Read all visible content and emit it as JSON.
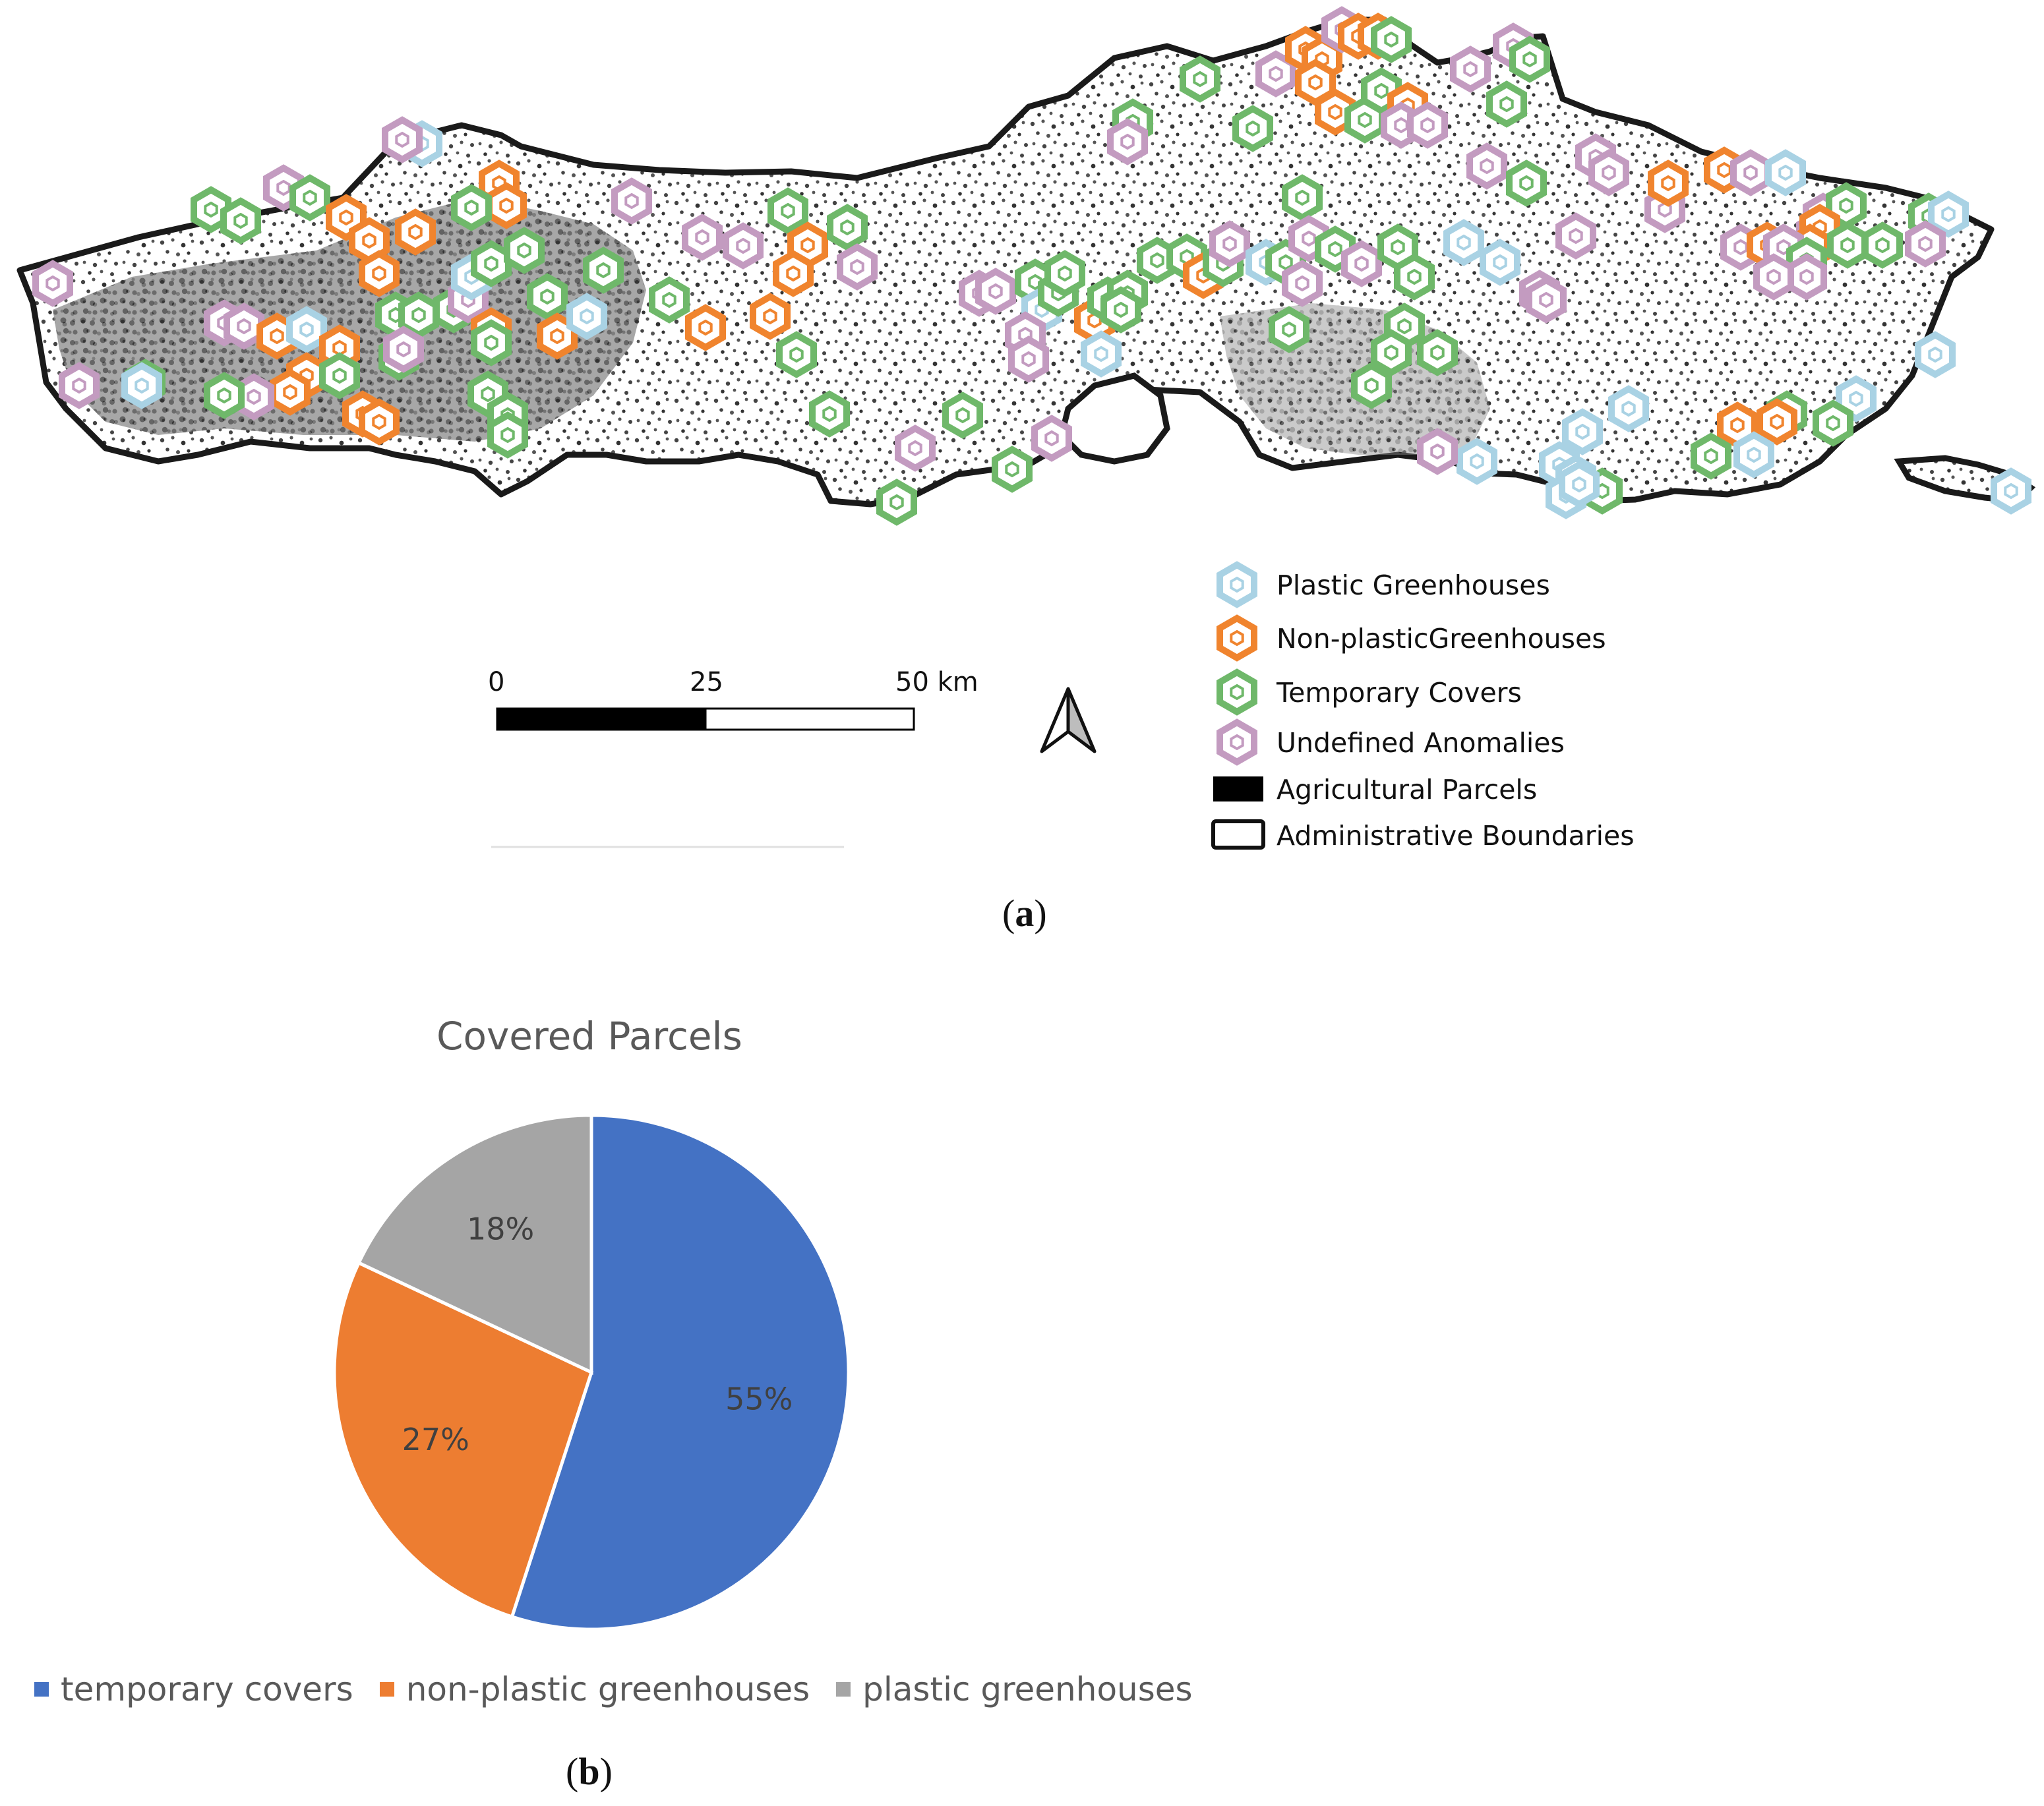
{
  "map": {
    "legend": [
      {
        "label": "Plastic Greenhouses",
        "color": "#a9d2e4",
        "icon": "hexagon-marker-icon"
      },
      {
        "label": "Non-plasticGreenhouses",
        "color": "#f0842e",
        "icon": "hexagon-marker-icon"
      },
      {
        "label": "Temporary Covers",
        "color": "#6fb86a",
        "icon": "hexagon-marker-icon"
      },
      {
        "label": "Undefined Anomalies",
        "color": "#c39bc0",
        "icon": "hexagon-marker-icon"
      },
      {
        "label": "Agricultural Parcels",
        "color": "#000000",
        "icon": "filled-rectangle-icon"
      },
      {
        "label": "Administrative Boundaries",
        "color": "#ffffff",
        "icon": "outlined-rectangle-icon"
      }
    ],
    "scale_bar": {
      "labels": [
        "0",
        "25",
        "50 km"
      ]
    },
    "north_arrow": "north-arrow-icon",
    "caption": {
      "open": "(",
      "letter": "a",
      "close": ")"
    }
  },
  "chart_data": {
    "type": "pie",
    "title": "Covered Parcels",
    "categories": [
      "temporary covers",
      "non-plastic greenhouses",
      "plastic greenhouses"
    ],
    "values": [
      55,
      27,
      18
    ],
    "labels": [
      "55%",
      "27%",
      "18%"
    ],
    "colors": [
      "#4472c4",
      "#ed7d31",
      "#a5a5a5"
    ],
    "legend_position": "bottom"
  },
  "pie_caption": {
    "open": "(",
    "letter": "b",
    "close": ")"
  }
}
